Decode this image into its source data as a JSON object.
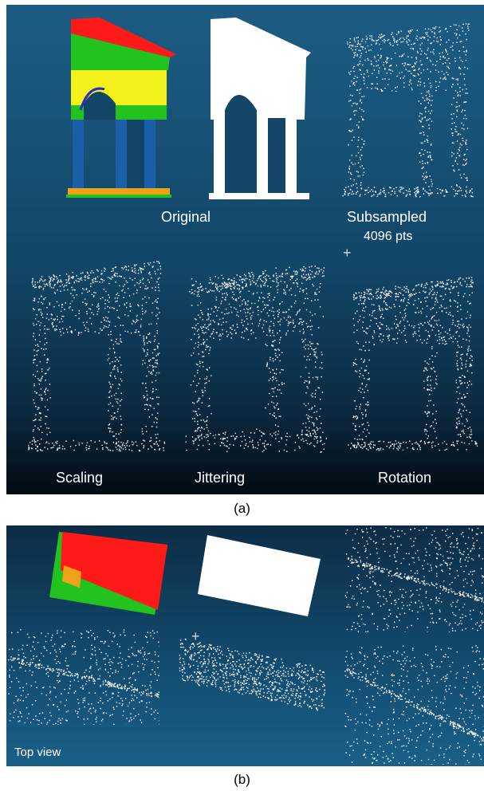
{
  "panel_a": {
    "labels": {
      "original": "Original",
      "subsampled": "Subsampled",
      "subsampled_count": "4096 pts",
      "scaling": "Scaling",
      "jittering": "Jittering",
      "rotation": "Rotation"
    },
    "caption": "(a)"
  },
  "panel_b": {
    "corner_label": "Top view",
    "caption": "(b)"
  },
  "colors": {
    "roof_red": "#ff1a1a",
    "green": "#22c21f",
    "yellow": "#f2f21a",
    "blue_columns": "#1a5fa8",
    "orange": "#f0a11a",
    "points_white": "#ffffff"
  }
}
